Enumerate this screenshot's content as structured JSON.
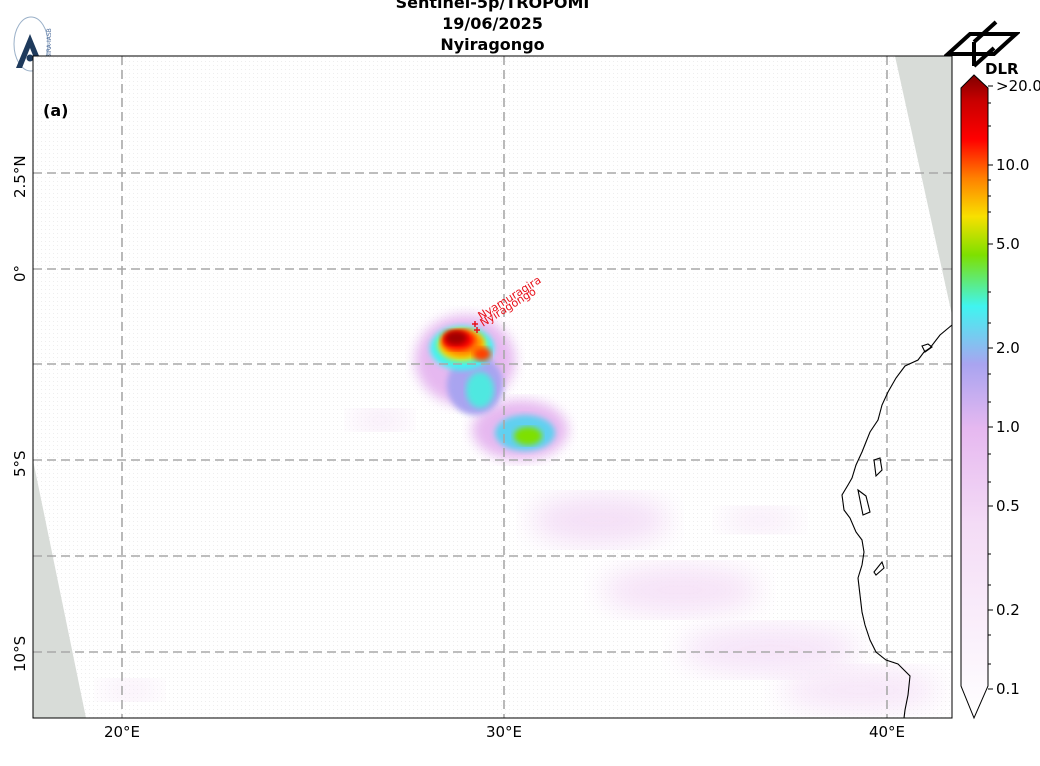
{
  "header": {
    "line1": "Sentinel-5p/TROPOMI",
    "line2": "19/06/2025",
    "line3": "Nyiragongo"
  },
  "logos": {
    "left_text": "BIRA-IASB",
    "right_text": "DLR"
  },
  "map": {
    "panel_label": "(a)",
    "lon_ticks": [
      "20°E",
      "30°E",
      "40°E"
    ],
    "lat_ticks": [
      "2.5°N",
      "0°",
      "5°S",
      "10°S"
    ],
    "volcano_labels": [
      "Nyamuragira",
      "Nyiragongo"
    ],
    "colors": {
      "no_data": "#d8dcd8",
      "coastline": "#000000",
      "grid": "#a0a0a0",
      "label": "#e8101a"
    }
  },
  "colorbar": {
    "scale": "log",
    "tick_labels": [
      ">20.0",
      "10.0",
      "5.0",
      "2.0",
      "1.0",
      "0.5",
      "0.2",
      "0.1"
    ],
    "colormap": [
      "#ffffff",
      "#f0d0f4",
      "#e6b8f0",
      "#a9a4f0",
      "#40f4f0",
      "#7ee000",
      "#f8e000",
      "#ff8000",
      "#ff0000",
      "#c80000",
      "#800000"
    ]
  }
}
